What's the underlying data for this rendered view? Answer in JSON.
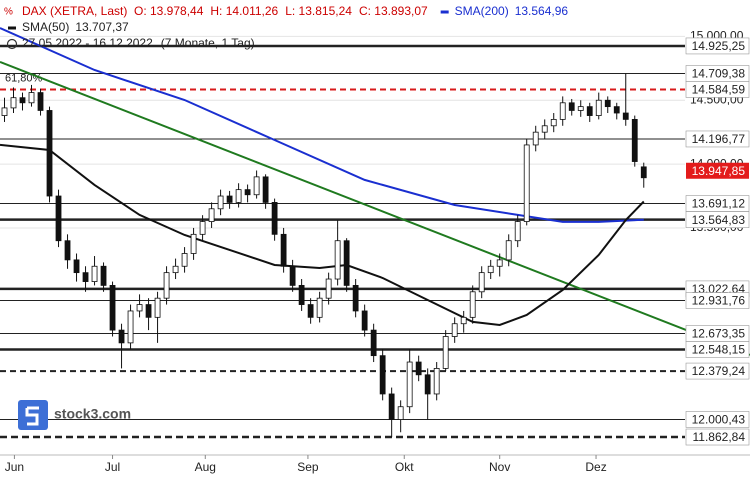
{
  "chart_data": {
    "type": "candlestick",
    "legend": {
      "title": "DAX (XETRA, Last)",
      "last_labels": [
        "O: 13.978,44",
        "H: 14.011,26",
        "L: 13.815,24",
        "C: 13.893,07"
      ],
      "period": "27.05.2022 - 16.12.2022",
      "duration": "(7 Monate, 1 Tag)",
      "color": "#cc0000"
    },
    "candles": {
      "opens": [
        14380,
        14440,
        14520,
        14480,
        14560,
        14420,
        13750,
        13400,
        13250,
        13150,
        13080,
        13200,
        13050,
        12700,
        12600,
        12850,
        12900,
        12800,
        12950,
        13150,
        13200,
        13300,
        13450,
        13550,
        13650,
        13750,
        13700,
        13800,
        13760,
        13900,
        13700,
        13450,
        13200,
        13050,
        12900,
        12800,
        12950,
        13100,
        13400,
        13050,
        12850,
        12700,
        12500,
        12200,
        12000,
        12100,
        12450,
        12350,
        12200,
        12400,
        12650,
        12750,
        12800,
        13000,
        13150,
        13200,
        13250,
        13400,
        13550,
        14150,
        14250,
        14300,
        14350,
        14480,
        14420,
        14450,
        14380,
        14500,
        14450,
        14400,
        14350,
        13978.44
      ],
      "highs": [
        14520,
        14600,
        14560,
        14620,
        14590,
        14450,
        13800,
        13450,
        13300,
        13200,
        13280,
        13230,
        13080,
        12750,
        12900,
        12980,
        12950,
        13000,
        13200,
        13260,
        13350,
        13500,
        13600,
        13700,
        13800,
        13790,
        13850,
        13840,
        13950,
        13920,
        13730,
        13500,
        13250,
        13100,
        12950,
        13000,
        13150,
        13560,
        13420,
        13100,
        12900,
        12750,
        12550,
        12250,
        12150,
        12550,
        12500,
        12400,
        12450,
        12700,
        12800,
        12850,
        13050,
        13200,
        13250,
        13300,
        13450,
        13600,
        14200,
        14300,
        14350,
        14400,
        14530,
        14510,
        14500,
        14480,
        14560,
        14530,
        14480,
        14709.38,
        14380,
        14011.26
      ],
      "lows": [
        14330,
        14400,
        14420,
        14450,
        14380,
        13700,
        13350,
        13180,
        13080,
        13000,
        13050,
        13000,
        12650,
        12400,
        12550,
        12800,
        12700,
        12600,
        12900,
        13100,
        13150,
        13250,
        13400,
        13500,
        13600,
        13650,
        13660,
        13700,
        13730,
        13650,
        13400,
        13150,
        13000,
        12850,
        12750,
        12760,
        12900,
        13050,
        13000,
        12800,
        12650,
        12450,
        12150,
        11862.84,
        11900,
        12050,
        12300,
        12000,
        12150,
        12380,
        12600,
        12680,
        12750,
        12950,
        13100,
        13120,
        13200,
        13350,
        13520,
        14100,
        14200,
        14250,
        14300,
        14380,
        14370,
        14330,
        14350,
        14400,
        14350,
        14300,
        13980,
        13815.24
      ],
      "closes": [
        14440,
        14520,
        14480,
        14560,
        14420,
        13750,
        13400,
        13250,
        13150,
        13080,
        13200,
        13050,
        12700,
        12600,
        12850,
        12900,
        12800,
        12950,
        13150,
        13200,
        13300,
        13450,
        13550,
        13650,
        13750,
        13700,
        13800,
        13760,
        13900,
        13700,
        13450,
        13200,
        13050,
        12900,
        12800,
        12950,
        13100,
        13400,
        13050,
        12850,
        12700,
        12500,
        12200,
        12000,
        12100,
        12450,
        12350,
        12200,
        12400,
        12650,
        12750,
        12800,
        13000,
        13150,
        13200,
        13250,
        13400,
        13550,
        14150,
        14250,
        14300,
        14350,
        14480,
        14420,
        14450,
        14380,
        14500,
        14450,
        14400,
        14350,
        14020,
        13893.07
      ]
    },
    "series": [
      {
        "name": "SMA(200)",
        "value_label": "13.564,96",
        "color": "#1a2fd0",
        "x": [
          -0.5,
          10,
          20,
          30,
          40,
          50,
          57,
          62,
          66,
          71
        ],
        "values": [
          15066,
          14737,
          14502,
          14189,
          13876,
          13680,
          13602,
          13547,
          13547,
          13564.96
        ]
      },
      {
        "name": "SMA(50)",
        "value_label": "13.707,37",
        "color": "#111111",
        "x": [
          -0.5,
          5,
          10,
          15,
          20,
          25,
          30,
          35,
          38,
          42,
          47,
          52,
          55,
          58,
          62,
          66,
          69,
          71
        ],
        "values": [
          14150,
          14110,
          13837,
          13602,
          13445,
          13328,
          13210,
          13186,
          13210,
          13108,
          12936,
          12764,
          12740,
          12818,
          13014,
          13288,
          13562,
          13707.37
        ]
      }
    ],
    "trendline": {
      "color": "#1f7a1f",
      "x": [
        -0.5,
        82.8
      ],
      "values": [
        14800,
        12505
      ]
    },
    "levels": [
      {
        "value": 14925.25,
        "label": "14.925,25",
        "style": "thick"
      },
      {
        "value": 14709.38,
        "label": "14.709,38",
        "style": "thin"
      },
      {
        "value": 14584.59,
        "label": "14.584,59",
        "style": "dashed",
        "color": "#d81b1b",
        "annotation": "61,80%"
      },
      {
        "value": 14196.77,
        "label": "14.196,77",
        "style": "thin"
      },
      {
        "value": 13691.12,
        "label": "13.691,12",
        "style": "thin"
      },
      {
        "value": 13564.83,
        "label": "13.564,83",
        "style": "thick"
      },
      {
        "value": 13022.64,
        "label": "13.022,64",
        "style": "thick"
      },
      {
        "value": 12931.76,
        "label": "12.931,76",
        "style": "thin"
      },
      {
        "value": 12673.35,
        "label": "12.673,35",
        "style": "thin"
      },
      {
        "value": 12548.15,
        "label": "12.548,15",
        "style": "thick"
      },
      {
        "value": 12379.24,
        "label": "12.379,24",
        "style": "dashed"
      },
      {
        "value": 12000.43,
        "label": "12.000,43",
        "style": "thin"
      },
      {
        "value": 11862.84,
        "label": "11.862,84",
        "style": "thick-dashed"
      }
    ],
    "current_price": {
      "value": 13947.85,
      "label": "13.947,85",
      "color": "#e31b1b"
    },
    "ylim": [
      11722,
      15285
    ],
    "yticks": [
      {
        "value": 15000,
        "label": "15.000,00"
      },
      {
        "value": 14500,
        "label": "14.500,00"
      },
      {
        "value": 14000,
        "label": "14.000,00"
      },
      {
        "value": 13500,
        "label": "13.500,00"
      }
    ],
    "xlim": [
      -0.5,
      82.8
    ],
    "xticks": [
      {
        "value": 1.1,
        "label": "Jun"
      },
      {
        "value": 12,
        "label": "Jul"
      },
      {
        "value": 22.3,
        "label": "Aug"
      },
      {
        "value": 33.7,
        "label": "Sep"
      },
      {
        "value": 44.4,
        "label": "Okt"
      },
      {
        "value": 55,
        "label": "Nov"
      },
      {
        "value": 65.7,
        "label": "Dez"
      }
    ],
    "watermark": "stock3.com"
  }
}
